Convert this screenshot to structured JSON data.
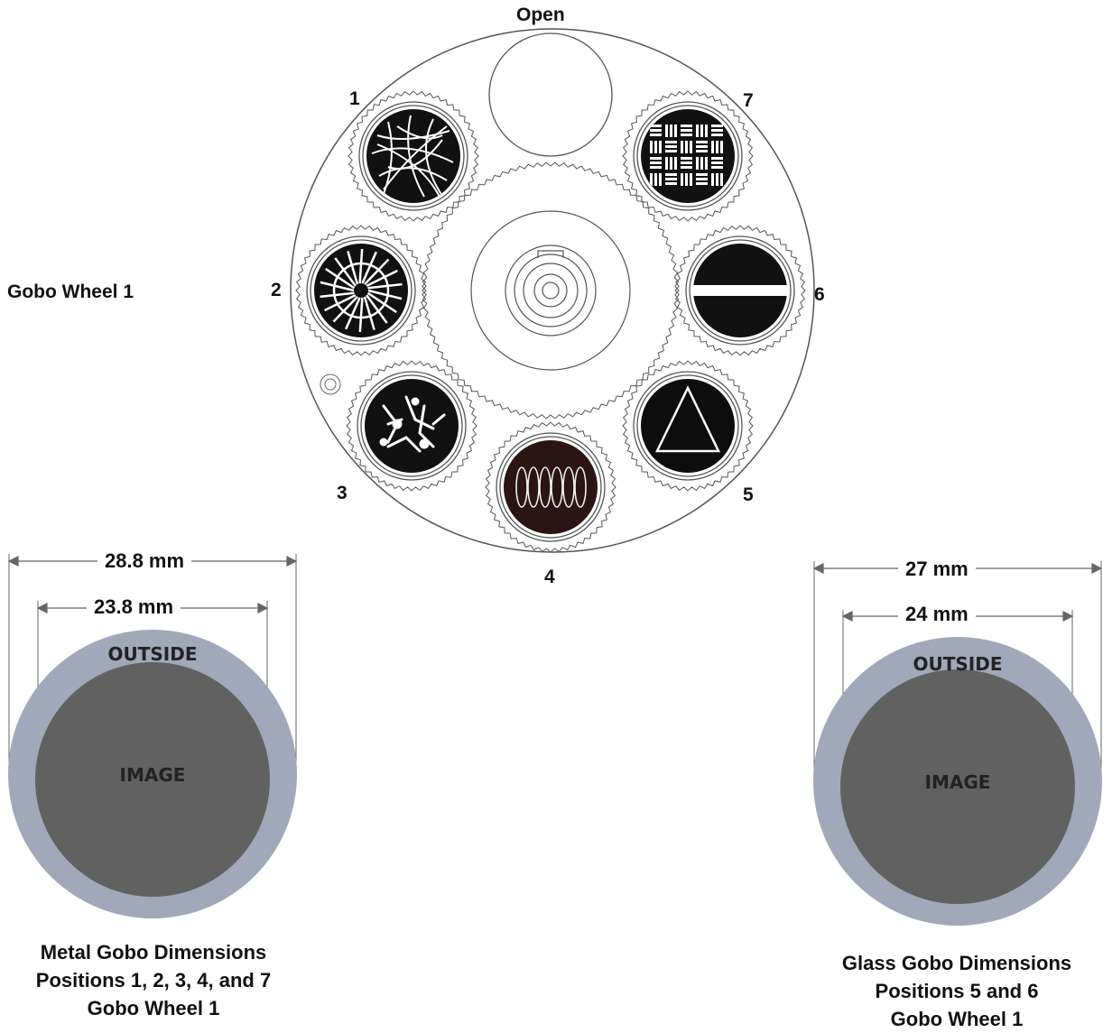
{
  "wheel": {
    "title": "Gobo Wheel 1",
    "open_label": "Open",
    "positions": [
      "1",
      "2",
      "3",
      "4",
      "5",
      "6",
      "7"
    ]
  },
  "metal": {
    "outer_dim": "28.8 mm",
    "inner_dim": "23.8 mm",
    "outer_label": "OUTSIDE",
    "inner_label": "IMAGE",
    "caption": [
      "Metal Gobo Dimensions",
      "Positions 1, 2, 3, 4, and 7",
      "Gobo Wheel 1"
    ]
  },
  "glass": {
    "outer_dim": "27 mm",
    "inner_dim": "24 mm",
    "outer_label": "OUTSIDE",
    "inner_label": "IMAGE",
    "caption": [
      "Glass Gobo Dimensions",
      "Positions 5 and 6",
      "Gobo Wheel 1"
    ]
  },
  "colors": {
    "outer_ring": "#a1a8b9",
    "image_disc": "#616161",
    "line": "#555555"
  }
}
